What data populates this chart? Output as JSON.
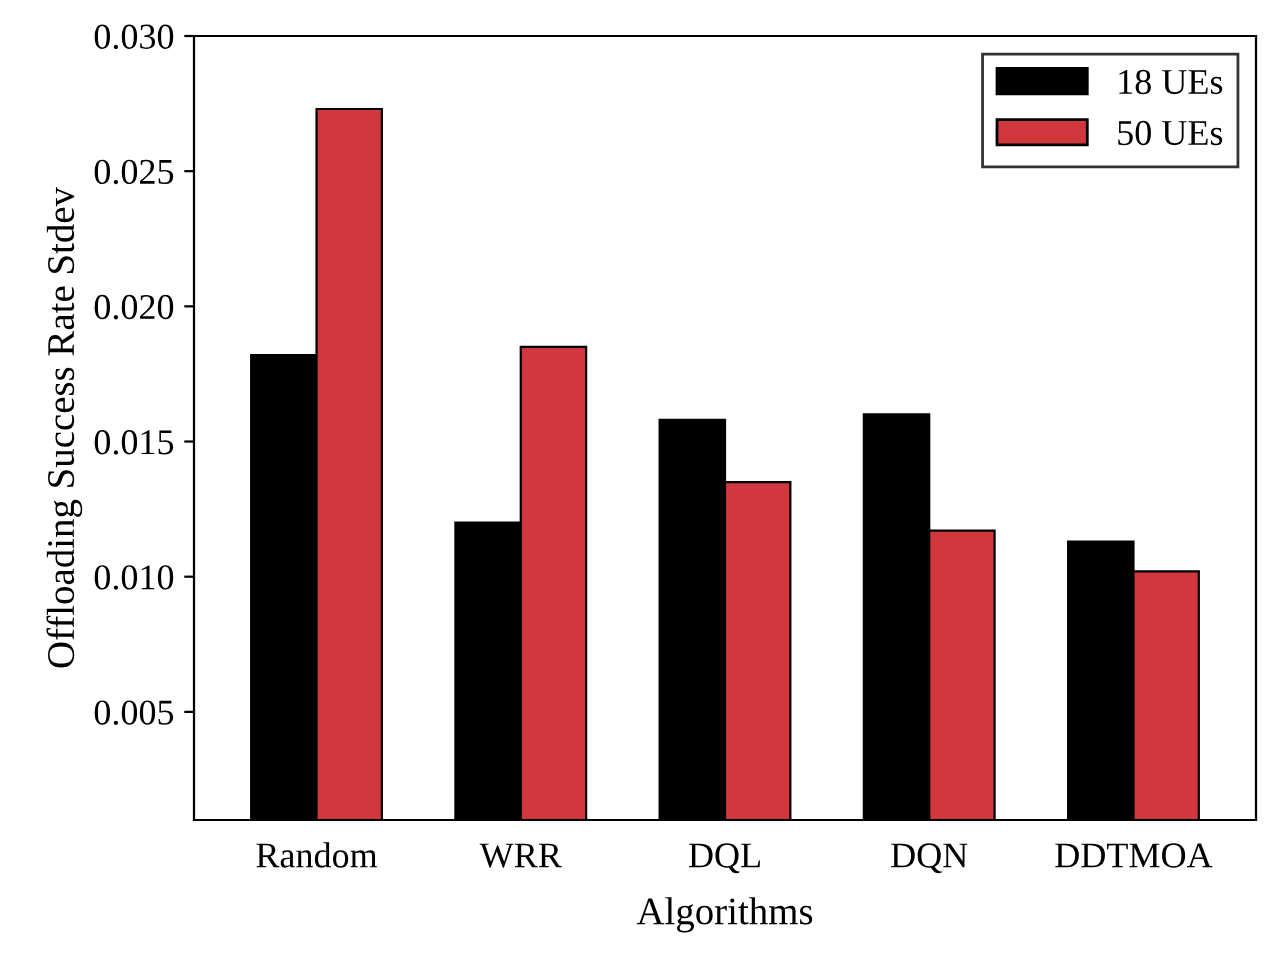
{
  "chart_data": {
    "type": "bar",
    "xlabel": "Algorithms",
    "ylabel": "Offloading Success Rate Stdev",
    "categories": [
      "Random",
      "WRR",
      "DQL",
      "DQN",
      "DDTMOA"
    ],
    "series": [
      {
        "name": "18 UEs",
        "color": "#000000",
        "values": [
          0.0182,
          0.012,
          0.0158,
          0.016,
          0.0113
        ]
      },
      {
        "name": "50 UEs",
        "color": "#d1383d",
        "values": [
          0.0273,
          0.0185,
          0.0135,
          0.0117,
          0.0102
        ]
      }
    ],
    "ylim": [
      0.001,
      0.03
    ],
    "yticks": [
      {
        "value": 0.005,
        "label": "0.005"
      },
      {
        "value": 0.01,
        "label": "0.010"
      },
      {
        "value": 0.015,
        "label": "0.015"
      },
      {
        "value": 0.02,
        "label": "0.020"
      },
      {
        "value": 0.025,
        "label": "0.025"
      },
      {
        "value": 0.03,
        "label": "0.030"
      }
    ],
    "legend": "top right",
    "grid": false
  }
}
